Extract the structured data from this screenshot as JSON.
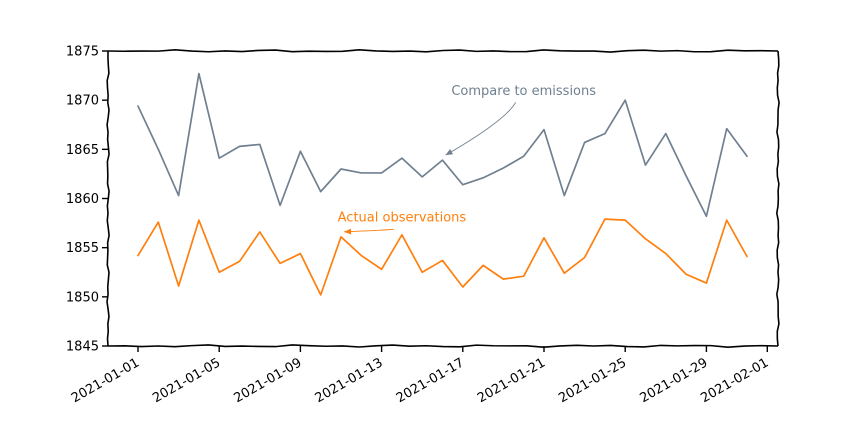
{
  "chart_data": {
    "type": "line",
    "title": "",
    "xlabel": "",
    "ylabel": "",
    "ylim": [
      1845,
      1875
    ],
    "y_ticks": [
      1845,
      1850,
      1855,
      1860,
      1865,
      1870,
      1875
    ],
    "x_ticks": [
      "2021-01-01",
      "2021-01-05",
      "2021-01-09",
      "2021-01-13",
      "2021-01-17",
      "2021-01-21",
      "2021-01-25",
      "2021-01-29",
      "2021-02-01"
    ],
    "x_tick_days": [
      1,
      5,
      9,
      13,
      17,
      21,
      25,
      29,
      32
    ],
    "grid": false,
    "legend": "none",
    "x": [
      "2021-01-01",
      "2021-01-02",
      "2021-01-03",
      "2021-01-04",
      "2021-01-05",
      "2021-01-06",
      "2021-01-07",
      "2021-01-08",
      "2021-01-09",
      "2021-01-10",
      "2021-01-11",
      "2021-01-12",
      "2021-01-13",
      "2021-01-14",
      "2021-01-15",
      "2021-01-16",
      "2021-01-17",
      "2021-01-18",
      "2021-01-19",
      "2021-01-20",
      "2021-01-21",
      "2021-01-22",
      "2021-01-23",
      "2021-01-24",
      "2021-01-25",
      "2021-01-26",
      "2021-01-27",
      "2021-01-28",
      "2021-01-29",
      "2021-01-30",
      "2021-01-31"
    ],
    "series": [
      {
        "color": "#708090",
        "values": [
          1869.4,
          1865.0,
          1860.3,
          1872.7,
          1864.1,
          1865.3,
          1865.5,
          1859.3,
          1864.8,
          1860.7,
          1863.0,
          1862.6,
          1862.6,
          1864.1,
          1862.2,
          1863.9,
          1861.4,
          1862.1,
          1863.1,
          1864.3,
          1867.0,
          1860.3,
          1865.7,
          1866.6,
          1870.0,
          1863.4,
          1866.6,
          1862.3,
          1858.2,
          1867.1,
          1864.3
        ]
      },
      {
        "color": "#ff7f0e",
        "values": [
          1854.2,
          1857.6,
          1851.1,
          1857.8,
          1852.5,
          1853.6,
          1856.6,
          1853.4,
          1854.4,
          1850.2,
          1856.1,
          1854.2,
          1852.8,
          1856.3,
          1852.5,
          1853.7,
          1851.0,
          1853.2,
          1851.8,
          1852.1,
          1856.0,
          1852.4,
          1854.0,
          1857.9,
          1857.8,
          1855.9,
          1854.4,
          1852.3,
          1851.4,
          1857.8,
          1854.1
        ]
      }
    ],
    "annotations": [
      {
        "text": "Compare to emissions",
        "color": "#708090",
        "target_x": "2021-01-16",
        "target_y": 1863.9,
        "text_x": "2021-01-20",
        "text_y": 1871
      },
      {
        "text": "Actual observations",
        "color": "#ff7f0e",
        "target_x": "2021-01-11",
        "target_y": 1856.1,
        "text_x": "2021-01-14",
        "text_y": 1858.1
      }
    ]
  }
}
